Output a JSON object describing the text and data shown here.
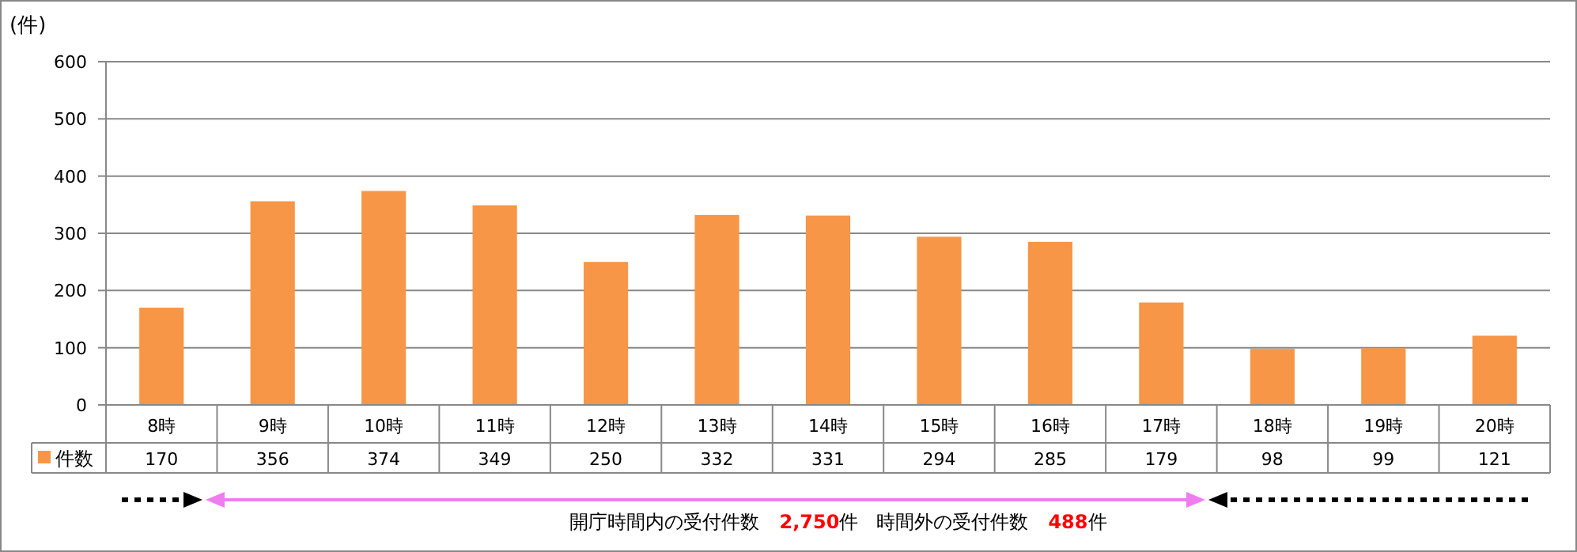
{
  "chart_data": {
    "type": "bar",
    "ylabel": "(件)",
    "categories": [
      "8時",
      "9時",
      "10時",
      "11時",
      "12時",
      "13時",
      "14時",
      "15時",
      "16時",
      "17時",
      "18時",
      "19時",
      "20時"
    ],
    "series": [
      {
        "name": "件数",
        "color": "#f79646",
        "values": [
          170,
          356,
          374,
          349,
          250,
          332,
          331,
          294,
          285,
          179,
          98,
          99,
          121
        ]
      }
    ],
    "ylim": [
      0,
      600
    ],
    "yticks": [
      0,
      100,
      200,
      300,
      400,
      500,
      600
    ],
    "grid": "y",
    "legend": "bottom",
    "data_labels": true,
    "annotations": [
      "開庁時間内の受付件数",
      "2,750件",
      "時間外の受付件数",
      "488件"
    ]
  }
}
